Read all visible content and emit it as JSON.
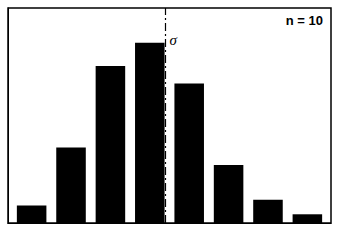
{
  "chart_data": {
    "type": "bar",
    "x": [
      1,
      2,
      3,
      4,
      5,
      6,
      7,
      8
    ],
    "values": [
      30,
      130,
      270,
      310,
      240,
      100,
      40,
      15
    ],
    "color": "#000000",
    "xlim": [
      0.4,
      8.6
    ],
    "ylim": [
      0,
      370
    ],
    "tick_labels": false,
    "grid": false,
    "vline": {
      "x": 4.4,
      "label": "σ"
    },
    "annotations": [
      "n = 10"
    ]
  }
}
